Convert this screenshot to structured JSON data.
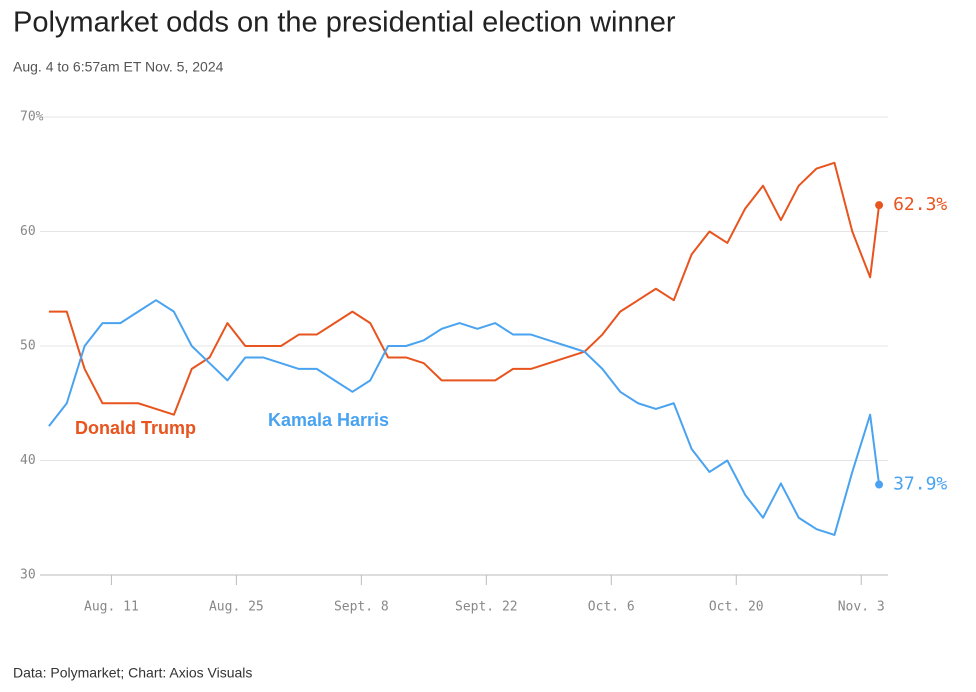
{
  "chart_data": {
    "type": "line",
    "title": "Polymarket odds on the presidential election winner",
    "subtitle": "Aug. 4 to 6:57am ET Nov. 5, 2024",
    "source": "Data: Polymarket; Chart: Axios Visuals",
    "x": [
      "2024-08-04",
      "2024-08-06",
      "2024-08-08",
      "2024-08-10",
      "2024-08-12",
      "2024-08-14",
      "2024-08-16",
      "2024-08-18",
      "2024-08-20",
      "2024-08-22",
      "2024-08-24",
      "2024-08-26",
      "2024-08-28",
      "2024-08-30",
      "2024-09-01",
      "2024-09-03",
      "2024-09-05",
      "2024-09-07",
      "2024-09-09",
      "2024-09-11",
      "2024-09-13",
      "2024-09-15",
      "2024-09-17",
      "2024-09-19",
      "2024-09-21",
      "2024-09-23",
      "2024-09-25",
      "2024-09-27",
      "2024-09-29",
      "2024-10-01",
      "2024-10-03",
      "2024-10-05",
      "2024-10-07",
      "2024-10-09",
      "2024-10-11",
      "2024-10-13",
      "2024-10-15",
      "2024-10-17",
      "2024-10-19",
      "2024-10-21",
      "2024-10-23",
      "2024-10-25",
      "2024-10-27",
      "2024-10-29",
      "2024-10-31",
      "2024-11-02",
      "2024-11-04",
      "2024-11-05"
    ],
    "series": [
      {
        "name": "Donald Trump",
        "color": "#e8541e",
        "values": [
          53,
          53,
          48,
          45,
          45,
          45,
          44.5,
          44,
          48,
          49,
          52,
          50,
          50,
          50,
          51,
          51,
          52,
          53,
          52,
          49,
          49,
          48.5,
          47,
          47,
          47,
          47,
          48,
          48,
          48.5,
          49,
          49.5,
          51,
          53,
          54,
          55,
          54,
          58,
          60,
          59,
          62,
          64,
          61,
          64,
          65.5,
          66,
          60,
          56,
          62.3
        ],
        "value_labels": {
          "47": "62.3%"
        }
      },
      {
        "name": "Kamala Harris",
        "color": "#4aa3f0",
        "values": [
          43,
          45,
          50,
          52,
          52,
          53,
          54,
          53,
          50,
          48.5,
          47,
          49,
          49,
          48.5,
          48,
          48,
          47,
          46,
          47,
          50,
          50,
          50.5,
          51.5,
          52,
          51.5,
          52,
          51,
          51,
          50.5,
          50,
          49.5,
          48,
          46,
          45,
          44.5,
          45,
          41,
          39,
          40,
          37,
          35,
          38,
          35,
          34,
          33.5,
          39,
          44,
          37.9
        ],
        "value_labels": {
          "47": "37.9%"
        }
      }
    ],
    "xlim": [
      "2024-08-03",
      "2024-11-06"
    ],
    "xticks": [
      {
        "value": "2024-08-11",
        "label": "Aug. 11"
      },
      {
        "value": "2024-08-25",
        "label": "Aug. 25"
      },
      {
        "value": "2024-09-08",
        "label": "Sept. 8"
      },
      {
        "value": "2024-09-22",
        "label": "Sept. 22"
      },
      {
        "value": "2024-10-06",
        "label": "Oct. 6"
      },
      {
        "value": "2024-10-20",
        "label": "Oct. 20"
      },
      {
        "value": "2024-11-03",
        "label": "Nov. 3"
      }
    ],
    "ylim": [
      30,
      70
    ],
    "yticks": [
      30,
      40,
      50,
      60,
      {
        "value": 70,
        "label": "70%"
      }
    ],
    "grid": true
  }
}
